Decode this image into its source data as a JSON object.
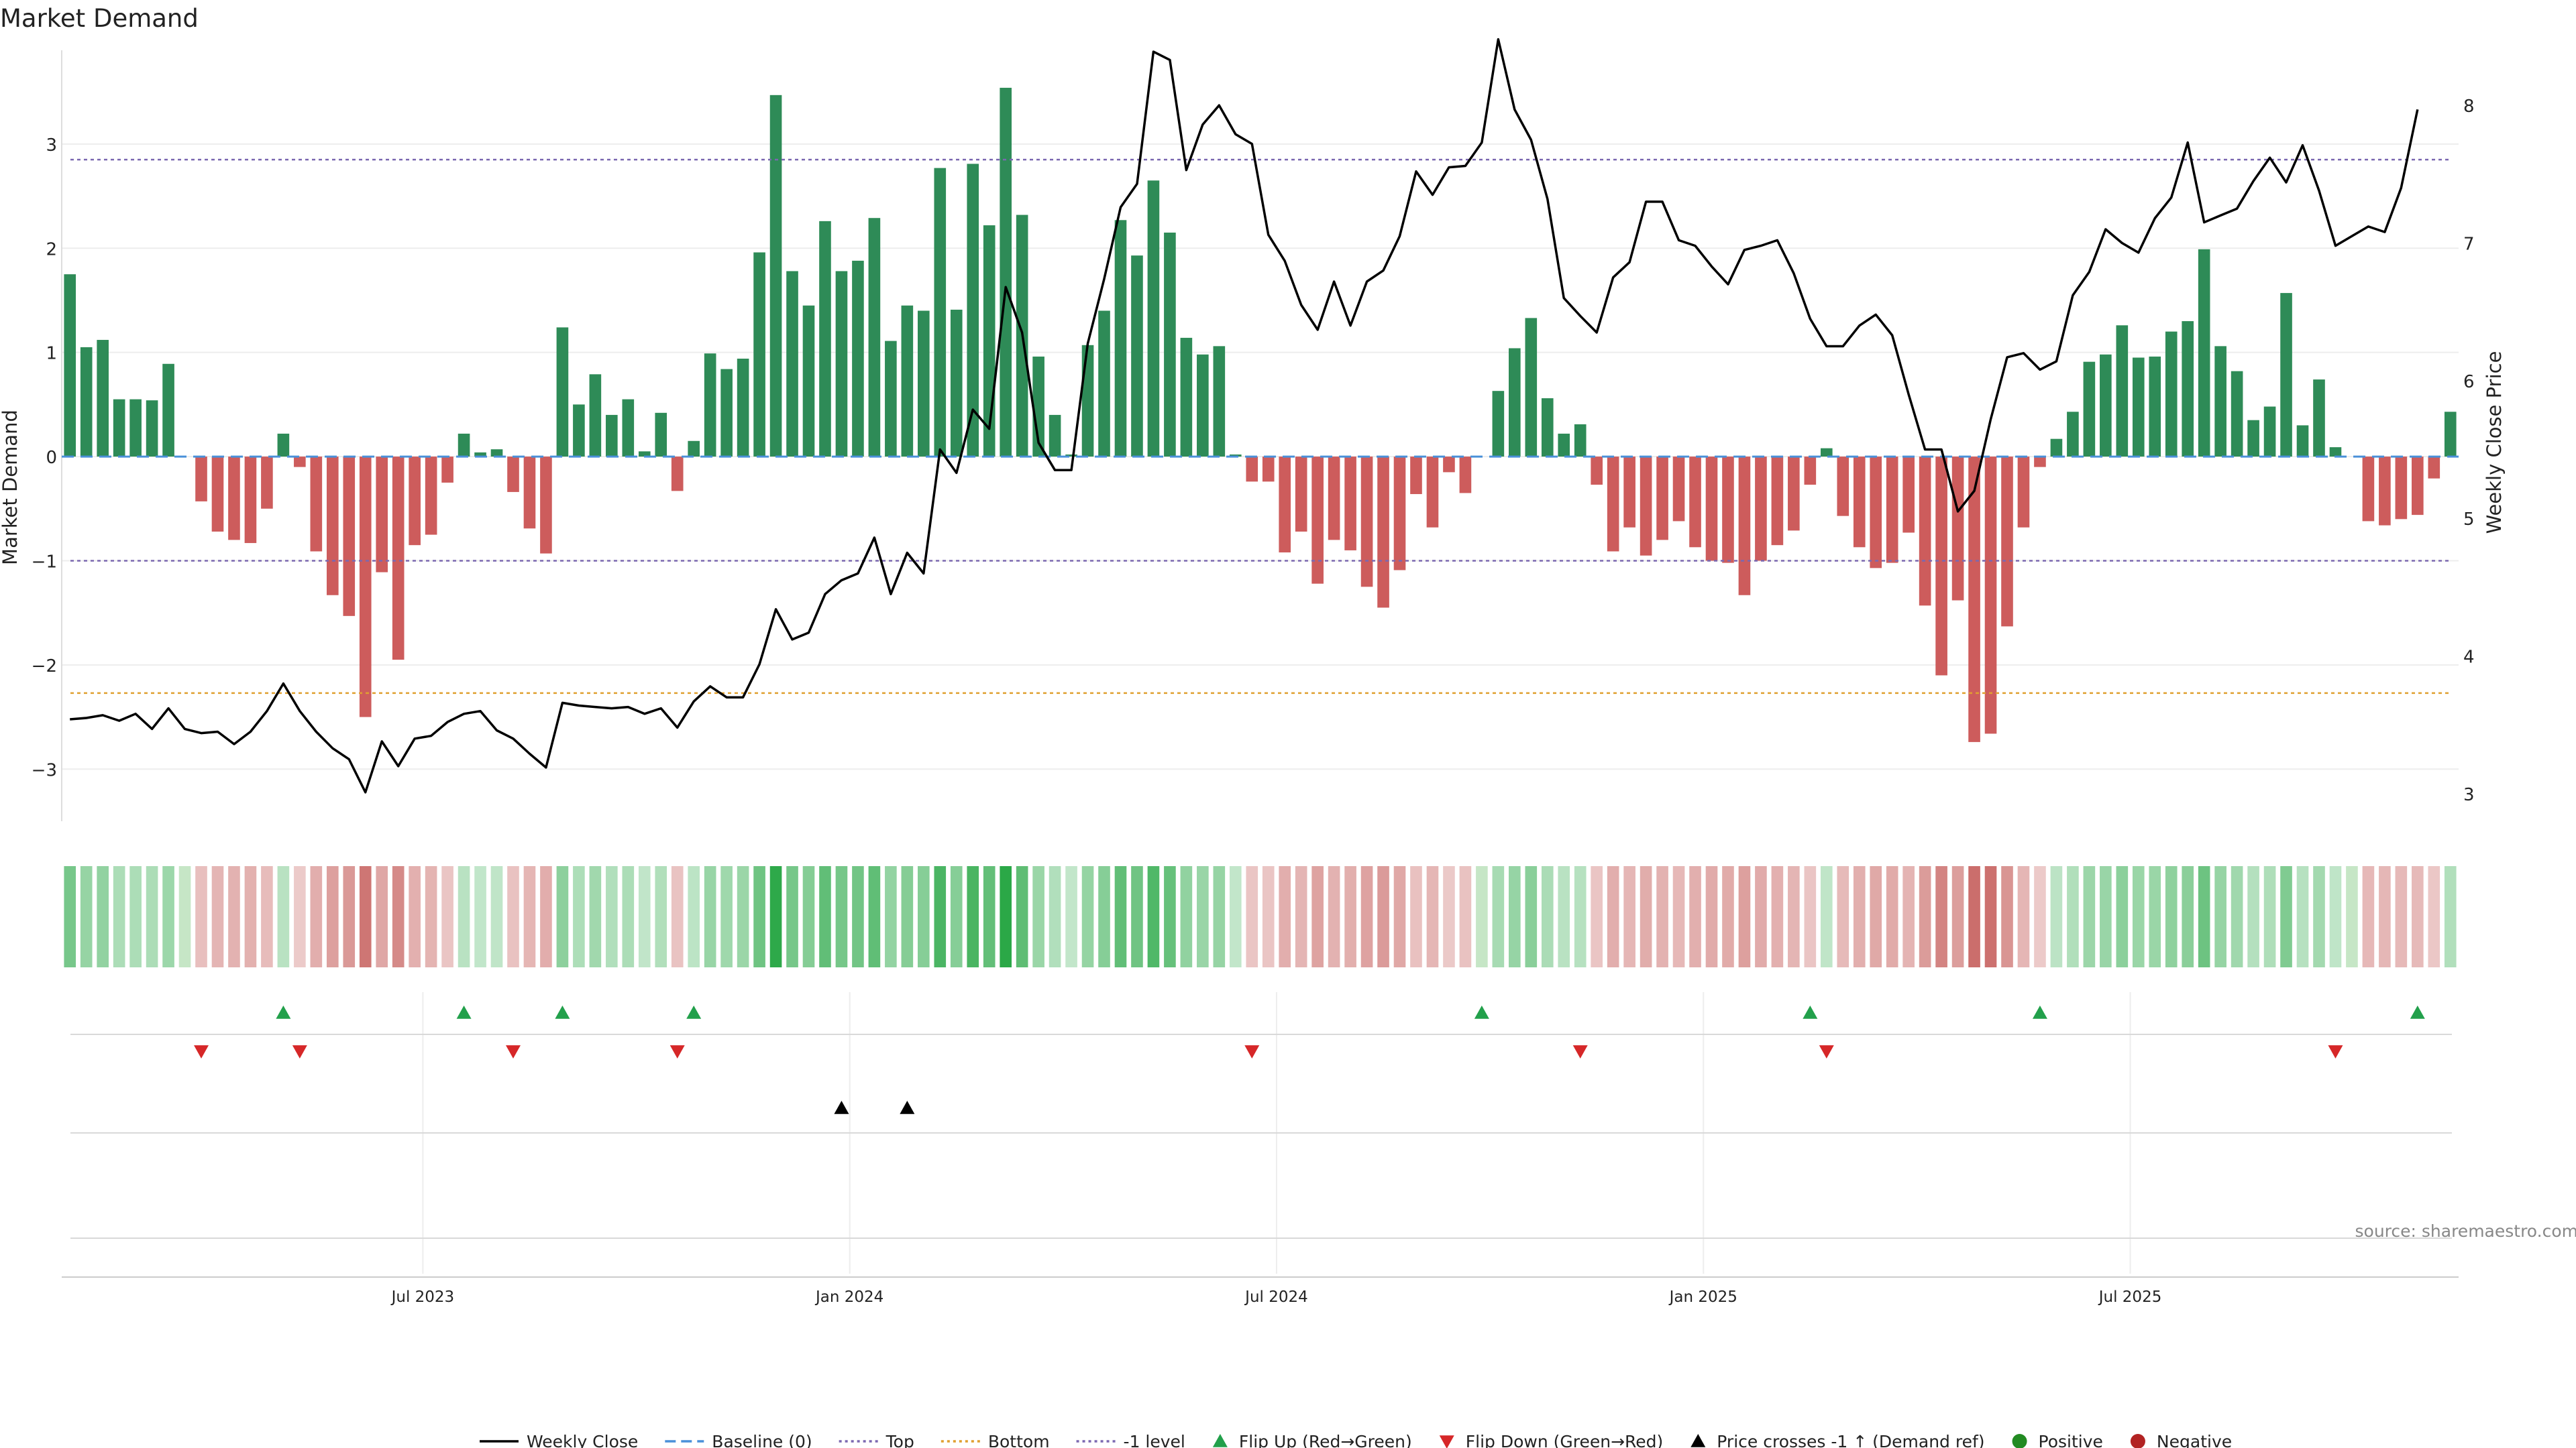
{
  "chart_data": {
    "type": "bar",
    "title": "Market Demand",
    "ylabel": "Market Demand",
    "y2label": "Weekly Close Price",
    "ylim": [
      -3.5,
      3.9
    ],
    "y2lim": [
      2.8,
      8.4
    ],
    "yticks": [
      -3,
      -2,
      -1,
      0,
      1,
      2,
      3
    ],
    "y2ticks": [
      3,
      4,
      5,
      6,
      7,
      8
    ],
    "x_tick_labels": [
      {
        "label": "Jul 2023",
        "week": 22
      },
      {
        "label": "Jan 2024",
        "week": 48
      },
      {
        "label": "Jul 2024",
        "week": 74
      },
      {
        "label": "Jan 2025",
        "week": 100
      },
      {
        "label": "Jul 2025",
        "week": 126
      }
    ],
    "reference_lines": {
      "top": 2.85,
      "bottom": -2.27,
      "minus_one": -1.0,
      "baseline": 0
    },
    "colors": {
      "positive_bar": "#2e8b57",
      "negative_bar": "#cd5c5c",
      "price_line": "#000000",
      "top_line": "#7b68b0",
      "bottom_line": "#e0a030",
      "level_line": "#7b68b0",
      "baseline": "#4a90d9",
      "flip_up": "#22a04b",
      "flip_down": "#d62728",
      "cross": "#000000",
      "positive_dot": "#228b22",
      "negative_dot": "#b22222"
    },
    "series": [
      {
        "name": "Market Demand",
        "values": [
          1.75,
          1.05,
          1.12,
          0.55,
          0.55,
          0.54,
          0.89,
          0,
          -0.43,
          -0.72,
          -0.8,
          -0.83,
          -0.5,
          0.22,
          -0.1,
          -0.91,
          -1.33,
          -1.53,
          -2.5,
          -1.11,
          -1.95,
          -0.85,
          -0.75,
          -0.25,
          0.22,
          0.04,
          0.07,
          -0.34,
          -0.69,
          -0.93,
          1.24,
          0.5,
          0.79,
          0.4,
          0.55,
          0.05,
          0.42,
          -0.33,
          0.15,
          0.99,
          0.84,
          0.94,
          1.96,
          3.47,
          1.78,
          1.45,
          2.26,
          1.78,
          1.88,
          2.29,
          1.11,
          1.45,
          1.4,
          2.77,
          1.41,
          2.81,
          2.22,
          3.54,
          2.32,
          0.96,
          0.4,
          0.02,
          1.07,
          1.4,
          2.27,
          1.93,
          2.65,
          2.15,
          1.14,
          0.98,
          1.06,
          0.02,
          -0.24,
          -0.24,
          -0.92,
          -0.72,
          -1.22,
          -0.8,
          -0.9,
          -1.25,
          -1.45,
          -1.09,
          -0.36,
          -0.68,
          -0.15,
          -0.35,
          0,
          0.63,
          1.04,
          1.33,
          0.56,
          0.22,
          0.31,
          -0.27,
          -0.91,
          -0.68,
          -0.95,
          -0.8,
          -0.62,
          -0.87,
          -1.0,
          -1.02,
          -1.33,
          -1.0,
          -0.85,
          -0.71,
          -0.27,
          0.08,
          -0.57,
          -0.87,
          -1.07,
          -1.02,
          -0.73,
          -1.43,
          -2.1,
          -1.38,
          -2.74,
          -2.66,
          -1.63,
          -0.68,
          -0.1,
          0.17,
          0.43,
          0.91,
          0.98,
          1.26,
          0.95,
          0.96,
          1.2,
          1.3,
          1.99,
          1.06,
          0.82,
          0.35,
          0.48,
          1.57,
          0.3,
          0.74,
          0.09,
          0,
          -0.62,
          -0.66,
          -0.6,
          -0.56,
          -0.21,
          0.43
        ]
      },
      {
        "name": "Weekly Close",
        "values": [
          3.54,
          3.55,
          3.57,
          3.53,
          3.58,
          3.47,
          3.62,
          3.47,
          3.44,
          3.45,
          3.36,
          3.45,
          3.6,
          3.8,
          3.6,
          3.45,
          3.33,
          3.25,
          3.01,
          3.38,
          3.2,
          3.4,
          3.42,
          3.52,
          3.58,
          3.6,
          3.46,
          3.4,
          3.29,
          3.19,
          3.66,
          3.64,
          3.63,
          3.62,
          3.63,
          3.58,
          3.62,
          3.48,
          3.67,
          3.78,
          3.7,
          3.7,
          3.94,
          4.34,
          4.12,
          4.17,
          4.45,
          4.55,
          4.6,
          4.86,
          4.45,
          4.75,
          4.6,
          5.5,
          5.33,
          5.79,
          5.65,
          6.68,
          6.35,
          5.55,
          5.35,
          5.35,
          6.27,
          6.74,
          7.26,
          7.43,
          8.39,
          8.33,
          7.53,
          7.86,
          8.0,
          7.79,
          7.72,
          7.06,
          6.87,
          6.55,
          6.37,
          6.72,
          6.4,
          6.72,
          6.8,
          7.05,
          7.52,
          7.35,
          7.55,
          7.56,
          7.73,
          8.48,
          7.97,
          7.75,
          7.32,
          6.6,
          6.47,
          6.35,
          6.75,
          6.86,
          7.3,
          7.3,
          7.02,
          6.98,
          6.83,
          6.7,
          6.95,
          6.98,
          7.02,
          6.78,
          6.45,
          6.25,
          6.25,
          6.4,
          6.48,
          6.33,
          5.9,
          5.5,
          5.5,
          5.05,
          5.2,
          5.72,
          6.17,
          6.2,
          6.08,
          6.14,
          6.62,
          6.79,
          7.1,
          7.0,
          6.93,
          7.18,
          7.33,
          7.73,
          7.15,
          7.2,
          7.25,
          7.45,
          7.62,
          7.44,
          7.71,
          7.38,
          6.98,
          7.05,
          7.12,
          7.08,
          7.4,
          7.97
        ]
      }
    ],
    "flip_up_weeks": [
      13,
      24,
      30,
      38,
      86,
      106,
      120,
      143
    ],
    "flip_down_weeks": [
      8,
      14,
      27,
      37,
      72,
      92,
      107,
      138
    ],
    "price_cross_weeks": [
      47,
      51
    ],
    "legend": {
      "position": "bottom",
      "entries": [
        {
          "label": "Weekly Close",
          "kind": "solid",
          "color": "#000000"
        },
        {
          "label": "Baseline (0)",
          "kind": "dashed",
          "color": "#4a90d9"
        },
        {
          "label": "Top",
          "kind": "dotted",
          "color": "#7b68b0"
        },
        {
          "label": "Bottom",
          "kind": "dotted",
          "color": "#e0a030"
        },
        {
          "label": "-1 level",
          "kind": "dotted",
          "color": "#7b68b0"
        },
        {
          "label": "Flip Up (Red→Green)",
          "kind": "tri-up",
          "color": "#22a04b"
        },
        {
          "label": "Flip Down (Green→Red)",
          "kind": "tri-down",
          "color": "#d62728"
        },
        {
          "label": "Price crosses -1 ↑ (Demand ref)",
          "kind": "tri-up",
          "color": "#000000"
        },
        {
          "label": "Positive",
          "kind": "dot",
          "color": "#228b22"
        },
        {
          "label": "Negative",
          "kind": "dot",
          "color": "#b22222"
        }
      ]
    },
    "source": "source: sharemaestro.com"
  }
}
